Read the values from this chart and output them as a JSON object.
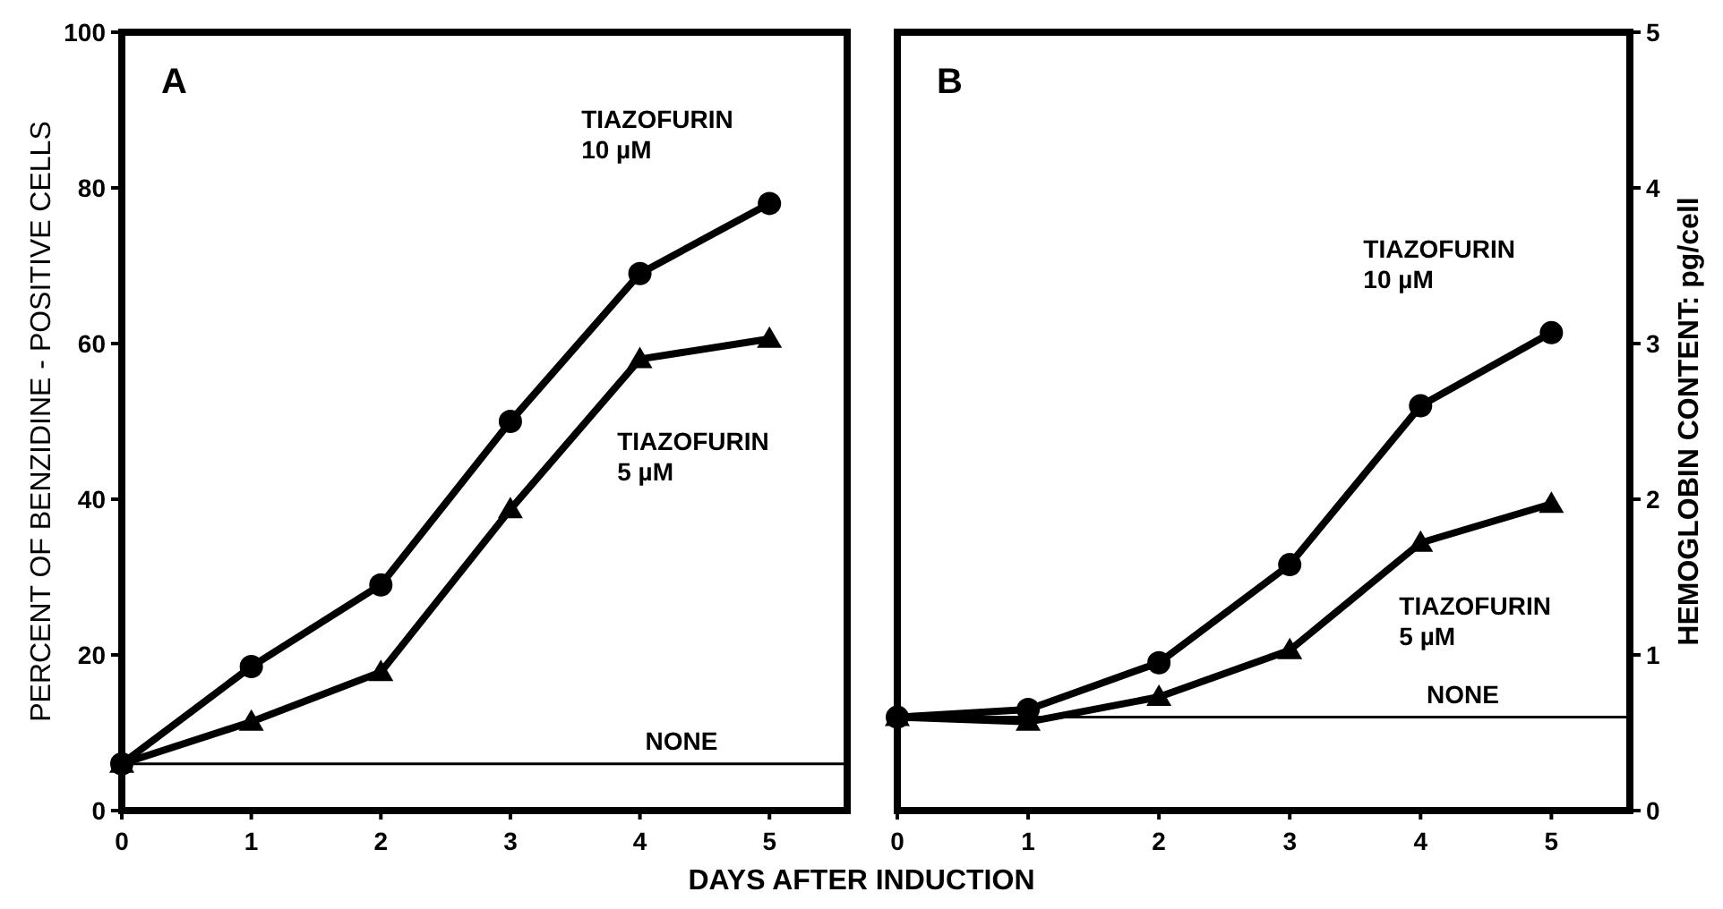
{
  "chart_data": [
    {
      "type": "line",
      "title": "A",
      "xlabel": "DAYS AFTER INDUCTION",
      "ylabel": "PERCENT OF BENZIDINE - POSITIVE CELLS",
      "x": [
        0,
        1,
        2,
        3,
        4,
        5
      ],
      "xlim": [
        0,
        5.6
      ],
      "xticks": [
        0,
        1,
        2,
        3,
        4,
        5
      ],
      "ylim": [
        0,
        100
      ],
      "yticks": [
        0,
        20,
        40,
        60,
        80,
        100
      ],
      "grid": false,
      "legend": false,
      "series": [
        {
          "name": "TIAZOFURIN 10 µM",
          "color": "#000000",
          "marker": "circle",
          "values": [
            6,
            18.5,
            29,
            50,
            69,
            78
          ]
        },
        {
          "name": "TIAZOFURIN 5 µM",
          "color": "#000000",
          "marker": "triangle",
          "values": [
            6,
            11.4,
            17.8,
            38.7,
            58,
            60.6
          ]
        }
      ],
      "ref_lines": [
        {
          "axis": "y",
          "value": 6,
          "label": "NONE"
        }
      ]
    },
    {
      "type": "line",
      "title": "B",
      "y2label": "HEMOGLOBIN CONTENT: pg/cell",
      "x": [
        0,
        1,
        2,
        3,
        4,
        5
      ],
      "xlim": [
        0,
        5.6
      ],
      "xticks": [
        0,
        1,
        2,
        3,
        4,
        5
      ],
      "y2lim": [
        0,
        5
      ],
      "y2ticks": [
        0,
        1,
        2,
        3,
        4,
        5
      ],
      "grid": false,
      "legend": false,
      "series": [
        {
          "name": "TIAZOFURIN 10 µM",
          "color": "#000000",
          "marker": "circle",
          "axis": "y2",
          "values": [
            0.6,
            0.65,
            0.95,
            1.58,
            2.6,
            3.07
          ]
        },
        {
          "name": "TIAZOFURIN 5 µM",
          "color": "#000000",
          "marker": "triangle",
          "axis": "y2",
          "values": [
            0.6,
            0.57,
            0.73,
            1.03,
            1.72,
            1.97
          ]
        }
      ],
      "ref_lines": [
        {
          "axis": "y2",
          "value": 0.6,
          "label": "NONE"
        }
      ]
    }
  ]
}
